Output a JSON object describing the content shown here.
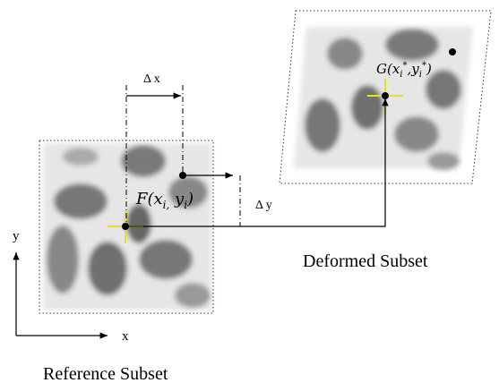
{
  "labels": {
    "delta_x": "Δ x",
    "delta_y": "Δ y",
    "f_point": [
      "F(x",
      "i,",
      " y",
      "i",
      ")"
    ],
    "g_point": [
      "G(x",
      "i",
      "*",
      ",y",
      "i",
      "*",
      ")"
    ],
    "axis_y": "y",
    "axis_x": "x",
    "deformed": "Deformed Subset",
    "reference": "Reference Subset"
  }
}
